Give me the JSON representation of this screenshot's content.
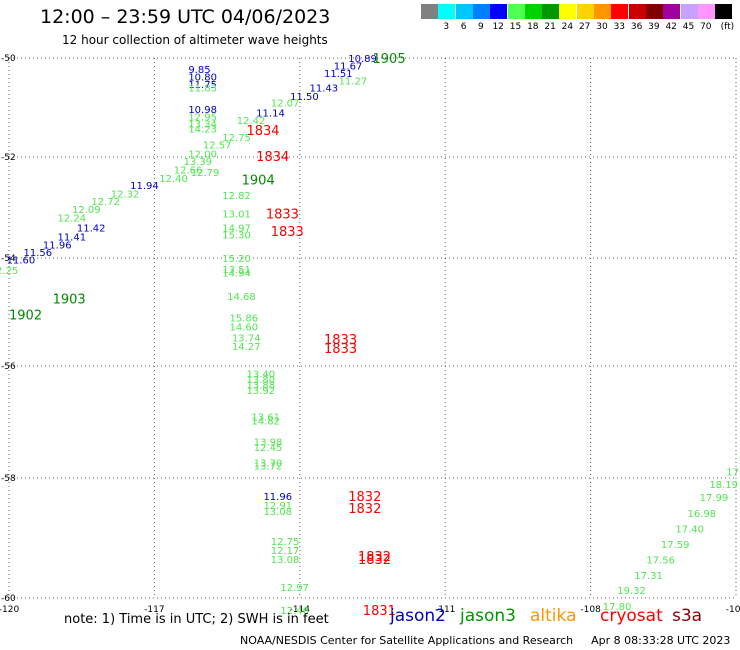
{
  "header": {
    "title": "12:00 – 23:59 UTC 04/06/2023",
    "subtitle": "12 hour collection of altimeter wave heights"
  },
  "colorbar": {
    "unit": "(ft)",
    "items": [
      {
        "label": "",
        "color": "#808080"
      },
      {
        "label": "3",
        "color": "#00ffff"
      },
      {
        "label": "6",
        "color": "#00c8ff"
      },
      {
        "label": "9",
        "color": "#0080ff"
      },
      {
        "label": "12",
        "color": "#0000ff"
      },
      {
        "label": "15",
        "color": "#50ff50"
      },
      {
        "label": "18",
        "color": "#00d200"
      },
      {
        "label": "21",
        "color": "#009600"
      },
      {
        "label": "24",
        "color": "#ffff00"
      },
      {
        "label": "27",
        "color": "#ffd200"
      },
      {
        "label": "30",
        "color": "#ff9600"
      },
      {
        "label": "33",
        "color": "#ff0000"
      },
      {
        "label": "36",
        "color": "#c80000"
      },
      {
        "label": "39",
        "color": "#800000"
      },
      {
        "label": "42",
        "color": "#a000a0"
      },
      {
        "label": "45",
        "color": "#c8a0ff"
      },
      {
        "label": "70",
        "color": "#ff96ff"
      },
      {
        "label": "",
        "color": "#000000"
      }
    ]
  },
  "map": {
    "lon_ticks": [
      "-120",
      "-117",
      "-114",
      "-111",
      "-108",
      "-105"
    ],
    "lat_ticks": [
      "-50",
      "-52",
      "-54",
      "-56",
      "-58",
      "-60"
    ],
    "colors": {
      "jason2": "#0000c8",
      "jason3": "#008c00",
      "swh_green": "#50e650",
      "time": "#ff0000"
    },
    "readings": [
      {
        "t": "10.89",
        "c": "jason2",
        "lon": -113.0,
        "lat": -50.0
      },
      {
        "t": "11.67",
        "c": "jason2",
        "lon": -113.3,
        "lat": -50.15
      },
      {
        "t": "11.51",
        "c": "jason2",
        "lon": -113.5,
        "lat": -50.3
      },
      {
        "t": "11.27",
        "c": "swh_green",
        "lon": -113.2,
        "lat": -50.45
      },
      {
        "t": "11.43",
        "c": "jason2",
        "lon": -113.8,
        "lat": -50.6
      },
      {
        "t": "11.50",
        "c": "jason2",
        "lon": -114.2,
        "lat": -50.77
      },
      {
        "t": "12.07",
        "c": "swh_green",
        "lon": -114.6,
        "lat": -50.9
      },
      {
        "t": "11.14",
        "c": "jason2",
        "lon": -114.9,
        "lat": -51.1
      },
      {
        "t": "12.42",
        "c": "swh_green",
        "lon": -115.3,
        "lat": -51.25
      },
      {
        "t": "12.75",
        "c": "swh_green",
        "lon": -115.6,
        "lat": -51.6
      },
      {
        "t": "12.57",
        "c": "swh_green",
        "lon": -116.0,
        "lat": -51.75
      },
      {
        "t": "12.00",
        "c": "swh_green",
        "lon": -116.3,
        "lat": -51.93
      },
      {
        "t": "13.39",
        "c": "swh_green",
        "lon": -116.4,
        "lat": -52.08
      },
      {
        "t": "12.66",
        "c": "swh_green",
        "lon": -116.6,
        "lat": -52.25
      },
      {
        "t": "12.79",
        "c": "swh_green",
        "lon": -116.25,
        "lat": -52.3
      },
      {
        "t": "12.40",
        "c": "swh_green",
        "lon": -116.9,
        "lat": -52.42
      },
      {
        "t": "11.94",
        "c": "jason2",
        "lon": -117.5,
        "lat": -52.55
      },
      {
        "t": "12.32",
        "c": "swh_green",
        "lon": -117.9,
        "lat": -52.72
      },
      {
        "t": "12.72",
        "c": "swh_green",
        "lon": -118.3,
        "lat": -52.87
      },
      {
        "t": "12.09",
        "c": "swh_green",
        "lon": -118.7,
        "lat": -53.03
      },
      {
        "t": "12.24",
        "c": "swh_green",
        "lon": -119.0,
        "lat": -53.2
      },
      {
        "t": "11.42",
        "c": "jason2",
        "lon": -118.6,
        "lat": -53.4
      },
      {
        "t": "11.41",
        "c": "jason2",
        "lon": -119.0,
        "lat": -53.57
      },
      {
        "t": "11.96",
        "c": "jason2",
        "lon": -119.3,
        "lat": -53.73
      },
      {
        "t": "11.56",
        "c": "jason2",
        "lon": -119.7,
        "lat": -53.88
      },
      {
        "t": "11.60",
        "c": "jason2",
        "lon": -120.05,
        "lat": -54.03
      },
      {
        "t": "12.25",
        "c": "swh_green",
        "lon": -120.4,
        "lat": -54.22
      },
      {
        "t": "12.44",
        "c": "swh_green",
        "lon": -120.8,
        "lat": -54.38
      },
      {
        "t": "11.62",
        "c": "jason2",
        "lon": -121.2,
        "lat": -54.55
      },
      {
        "t": "12.34",
        "c": "swh_green",
        "lon": -121.5,
        "lat": -54.72
      },
      {
        "t": "12.01",
        "c": "swh_green",
        "lon": -121.9,
        "lat": -54.88
      },
      {
        "t": "12.35",
        "c": "swh_green",
        "lon": -122.3,
        "lat": -55.05
      },
      {
        "t": "9.85",
        "c": "jason2",
        "lon": -116.3,
        "lat": -50.22
      },
      {
        "t": "10.80",
        "c": "jason2",
        "lon": -116.3,
        "lat": -50.37
      },
      {
        "t": "11.75",
        "c": "jason2",
        "lon": -116.3,
        "lat": -50.53
      },
      {
        "t": "11.83",
        "c": "swh_green",
        "lon": -116.3,
        "lat": -50.6
      },
      {
        "t": "10.98",
        "c": "jason2",
        "lon": -116.3,
        "lat": -51.03
      },
      {
        "t": "12.95",
        "c": "swh_green",
        "lon": -116.3,
        "lat": -51.18
      },
      {
        "t": "13.34",
        "c": "swh_green",
        "lon": -116.3,
        "lat": -51.32
      },
      {
        "t": "14.23",
        "c": "swh_green",
        "lon": -116.3,
        "lat": -51.42
      },
      {
        "t": "12.82",
        "c": "swh_green",
        "lon": -115.6,
        "lat": -52.75
      },
      {
        "t": "13.01",
        "c": "swh_green",
        "lon": -115.6,
        "lat": -53.12
      },
      {
        "t": "14.97",
        "c": "swh_green",
        "lon": -115.6,
        "lat": -53.4
      },
      {
        "t": "15.30",
        "c": "swh_green",
        "lon": -115.6,
        "lat": -53.53
      },
      {
        "t": "15.20",
        "c": "swh_green",
        "lon": -115.6,
        "lat": -54.0
      },
      {
        "t": "13.51",
        "c": "swh_green",
        "lon": -115.6,
        "lat": -54.2
      },
      {
        "t": "14.94",
        "c": "swh_green",
        "lon": -115.6,
        "lat": -54.27
      },
      {
        "t": "14.68",
        "c": "swh_green",
        "lon": -115.5,
        "lat": -54.7
      },
      {
        "t": "15.86",
        "c": "swh_green",
        "lon": -115.45,
        "lat": -55.1
      },
      {
        "t": "14.60",
        "c": "swh_green",
        "lon": -115.45,
        "lat": -55.27
      },
      {
        "t": "13.74",
        "c": "swh_green",
        "lon": -115.4,
        "lat": -55.47
      },
      {
        "t": "14.27",
        "c": "swh_green",
        "lon": -115.4,
        "lat": -55.63
      },
      {
        "t": "13.40",
        "c": "swh_green",
        "lon": -115.1,
        "lat": -56.13
      },
      {
        "t": "13.80",
        "c": "swh_green",
        "lon": -115.1,
        "lat": -56.23
      },
      {
        "t": "13.88",
        "c": "swh_green",
        "lon": -115.1,
        "lat": -56.33
      },
      {
        "t": "13.92",
        "c": "swh_green",
        "lon": -115.1,
        "lat": -56.43
      },
      {
        "t": "13.61",
        "c": "swh_green",
        "lon": -115.0,
        "lat": -56.9
      },
      {
        "t": "14.82",
        "c": "swh_green",
        "lon": -115.0,
        "lat": -56.97
      },
      {
        "t": "13.98",
        "c": "swh_green",
        "lon": -114.95,
        "lat": -57.35
      },
      {
        "t": "12.45",
        "c": "swh_green",
        "lon": -114.95,
        "lat": -57.45
      },
      {
        "t": "13.70",
        "c": "swh_green",
        "lon": -114.95,
        "lat": -57.72
      },
      {
        "t": "13.72",
        "c": "swh_green",
        "lon": -114.95,
        "lat": -57.78
      },
      {
        "t": "11.96",
        "c": "jason2",
        "lon": -114.75,
        "lat": -58.3
      },
      {
        "t": "12.91",
        "c": "swh_green",
        "lon": -114.75,
        "lat": -58.45
      },
      {
        "t": "13.08",
        "c": "swh_green",
        "lon": -114.75,
        "lat": -58.55
      },
      {
        "t": "12.75",
        "c": "swh_green",
        "lon": -114.6,
        "lat": -59.05
      },
      {
        "t": "12.17",
        "c": "swh_green",
        "lon": -114.6,
        "lat": -59.2
      },
      {
        "t": "13.08",
        "c": "swh_green",
        "lon": -114.6,
        "lat": -59.35
      },
      {
        "t": "12.97",
        "c": "swh_green",
        "lon": -114.4,
        "lat": -59.82
      },
      {
        "t": "12.46",
        "c": "swh_green",
        "lon": -114.4,
        "lat": -60.2
      },
      {
        "t": "17",
        "c": "swh_green",
        "lon": -104.9,
        "lat": -57.5
      },
      {
        "t": "19.",
        "c": "swh_green",
        "lon": -104.95,
        "lat": -57.68
      },
      {
        "t": "17.7",
        "c": "swh_green",
        "lon": -105.2,
        "lat": -57.88
      },
      {
        "t": "18.19",
        "c": "swh_green",
        "lon": -105.55,
        "lat": -58.1
      },
      {
        "t": "17.99",
        "c": "swh_green",
        "lon": -105.75,
        "lat": -58.32
      },
      {
        "t": "16.98",
        "c": "swh_green",
        "lon": -106.0,
        "lat": -58.58
      },
      {
        "t": "17.40",
        "c": "swh_green",
        "lon": -106.25,
        "lat": -58.84
      },
      {
        "t": "17.59",
        "c": "swh_green",
        "lon": -106.55,
        "lat": -59.1
      },
      {
        "t": "17.56",
        "c": "swh_green",
        "lon": -106.85,
        "lat": -59.36
      },
      {
        "t": "17.31",
        "c": "swh_green",
        "lon": -107.1,
        "lat": -59.62
      },
      {
        "t": "19.32",
        "c": "swh_green",
        "lon": -107.45,
        "lat": -59.87
      },
      {
        "t": "17.80",
        "c": "swh_green",
        "lon": -107.75,
        "lat": -60.13
      }
    ],
    "time_labels": [
      {
        "t": "1905",
        "c": "jason3",
        "lon": -112.5,
        "lat": -50.0
      },
      {
        "t": "1834",
        "c": "time",
        "lon": -115.1,
        "lat": -51.45
      },
      {
        "t": "1834",
        "c": "time",
        "lon": -114.9,
        "lat": -51.98
      },
      {
        "t": "1904",
        "c": "jason3",
        "lon": -115.2,
        "lat": -52.45
      },
      {
        "t": "1833",
        "c": "time",
        "lon": -114.7,
        "lat": -53.12
      },
      {
        "t": "1833",
        "c": "time",
        "lon": -114.6,
        "lat": -53.47
      },
      {
        "t": "1903",
        "c": "jason3",
        "lon": -119.1,
        "lat": -54.75
      },
      {
        "t": "1902",
        "c": "jason3",
        "lon": -120.0,
        "lat": -55.05
      },
      {
        "t": "1833",
        "c": "time",
        "lon": -113.5,
        "lat": -55.5
      },
      {
        "t": "1833",
        "c": "time",
        "lon": -113.5,
        "lat": -55.67
      },
      {
        "t": "1832",
        "c": "time",
        "lon": -113.0,
        "lat": -58.3
      },
      {
        "t": "1832",
        "c": "time",
        "lon": -113.0,
        "lat": -58.5
      },
      {
        "t": "1832",
        "c": "time",
        "lon": -112.8,
        "lat": -59.3
      },
      {
        "t": "1832",
        "c": "time",
        "lon": -112.8,
        "lat": -59.35
      },
      {
        "t": "1831",
        "c": "time",
        "lon": -112.7,
        "lat": -60.2
      }
    ]
  },
  "footer": {
    "note": "note:  1) Time is in UTC;  2) SWH is in feet",
    "missions": [
      {
        "label": "jason2",
        "color": "#0000c8"
      },
      {
        "label": "jason3",
        "color": "#009600"
      },
      {
        "label": "altika",
        "color": "#ff9600"
      },
      {
        "label": "cryosat",
        "color": "#ff0000"
      },
      {
        "label": "s3a",
        "color": "#8c0000"
      }
    ],
    "credit": "NOAA/NESDIS Center for Satellite Applications and Research",
    "datetime": "Apr  8 08:33:28 UTC 2023"
  }
}
